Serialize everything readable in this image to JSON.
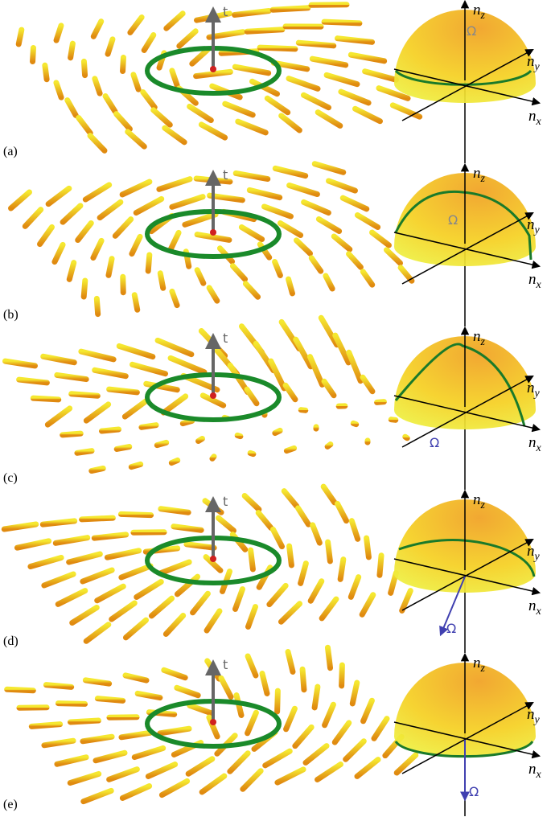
{
  "panels": [
    {
      "label": "(a)",
      "time_axis": "t",
      "omega": "Ω",
      "n_z": {
        "base": "n",
        "sub": "z"
      },
      "n_y": {
        "base": "n",
        "sub": "y"
      },
      "n_x": {
        "base": "n",
        "sub": "x"
      }
    },
    {
      "label": "(b)",
      "time_axis": "t",
      "omega": "Ω",
      "n_z": {
        "base": "n",
        "sub": "z"
      },
      "n_y": {
        "base": "n",
        "sub": "y"
      },
      "n_x": {
        "base": "n",
        "sub": "x"
      }
    },
    {
      "label": "(c)",
      "time_axis": "t",
      "omega": "Ω",
      "n_z": {
        "base": "n",
        "sub": "z"
      },
      "n_y": {
        "base": "n",
        "sub": "y"
      },
      "n_x": {
        "base": "n",
        "sub": "x"
      }
    },
    {
      "label": "(d)",
      "time_axis": "t",
      "omega": "Ω",
      "n_z": {
        "base": "n",
        "sub": "z"
      },
      "n_y": {
        "base": "n",
        "sub": "y"
      },
      "n_x": {
        "base": "n",
        "sub": "x"
      }
    },
    {
      "label": "(e)",
      "time_axis": "t",
      "omega": "Ω",
      "n_z": {
        "base": "n",
        "sub": "z"
      },
      "n_y": {
        "base": "n",
        "sub": "y"
      },
      "n_x": {
        "base": "n",
        "sub": "x"
      }
    }
  ]
}
